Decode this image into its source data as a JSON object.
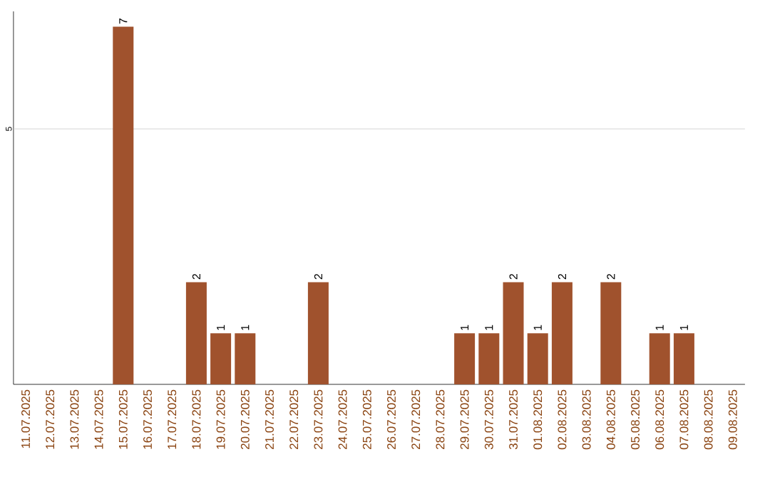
{
  "chart_data": {
    "type": "bar",
    "categories": [
      "11.07.2025",
      "12.07.2025",
      "13.07.2025",
      "14.07.2025",
      "15.07.2025",
      "16.07.2025",
      "17.07.2025",
      "18.07.2025",
      "19.07.2025",
      "20.07.2025",
      "21.07.2025",
      "22.07.2025",
      "23.07.2025",
      "24.07.2025",
      "25.07.2025",
      "26.07.2025",
      "27.07.2025",
      "28.07.2025",
      "29.07.2025",
      "30.07.2025",
      "31.07.2025",
      "01.08.2025",
      "02.08.2025",
      "03.08.2025",
      "04.08.2025",
      "05.08.2025",
      "06.08.2025",
      "07.08.2025",
      "08.08.2025",
      "09.08.2025"
    ],
    "values": [
      0,
      0,
      0,
      0,
      7,
      0,
      0,
      2,
      1,
      1,
      0,
      0,
      2,
      0,
      0,
      0,
      0,
      0,
      1,
      1,
      2,
      1,
      2,
      0,
      2,
      0,
      1,
      1,
      0,
      0
    ],
    "value_labels": [
      null,
      null,
      null,
      null,
      "7",
      null,
      null,
      "2",
      "1",
      "1",
      null,
      null,
      "2",
      null,
      null,
      null,
      null,
      null,
      "1",
      "1",
      "2",
      "1",
      "2",
      null,
      "2",
      null,
      "1",
      "1",
      null,
      null
    ],
    "color": "#a0522d",
    "ylim": [
      0,
      7.3
    ],
    "ref_lines": [
      {
        "axis": "y",
        "value": 5,
        "label": "5",
        "color": "#cccccc"
      }
    ]
  }
}
